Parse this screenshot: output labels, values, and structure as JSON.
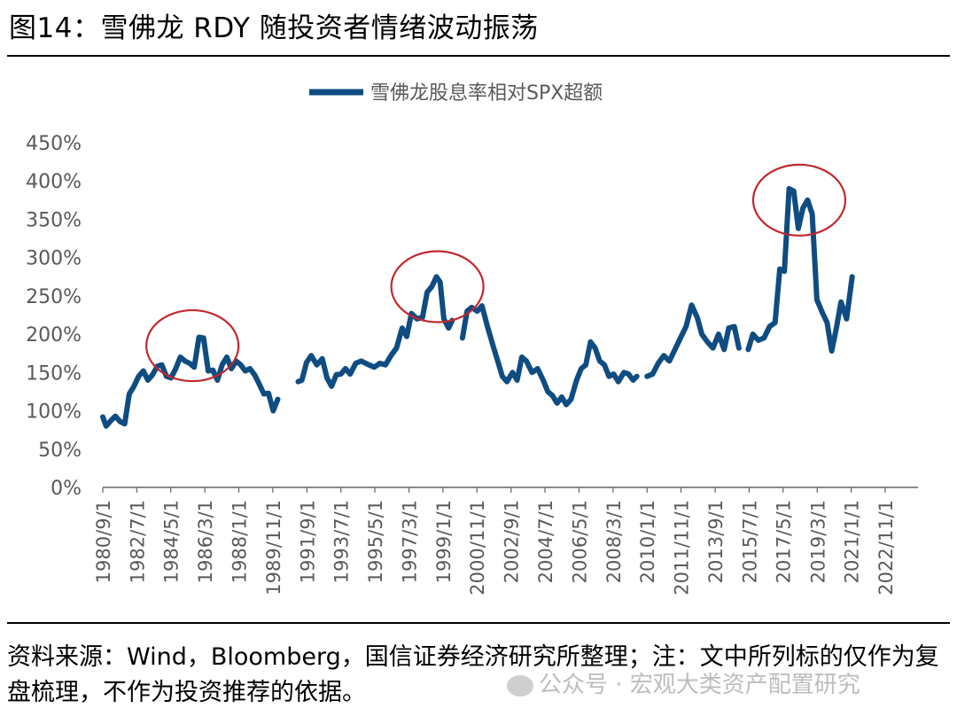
{
  "title": "图14：雪佛龙 RDY 随投资者情绪波动振荡",
  "footnote": "资料来源：Wind，Bloomberg，国信证券经济研究所整理；注：文中所列标的仅作为复盘梳理，不作为投资推荐的依据。",
  "watermark": "公众号 · 宏观大类资产配置研究",
  "colors": {
    "series": "#0f4c81",
    "circle": "#c0282d",
    "axis": "#666666",
    "text": "#595959"
  },
  "chart_data": {
    "type": "line",
    "title": "",
    "xlabel": "",
    "ylabel": "",
    "ylim": [
      0,
      4.5
    ],
    "yticks": [
      0,
      0.5,
      1.0,
      1.5,
      2.0,
      2.5,
      3.0,
      3.5,
      4.0,
      4.5
    ],
    "ytick_labels": [
      "0%",
      "50%",
      "100%",
      "150%",
      "200%",
      "250%",
      "300%",
      "350%",
      "400%",
      "450%"
    ],
    "xlim": [
      1980.67,
      2024.6
    ],
    "xtick_labels": [
      "1980/9/1",
      "1982/7/1",
      "1984/5/1",
      "1986/3/1",
      "1988/1/1",
      "1989/11/1",
      "1991/9/1",
      "1993/7/1",
      "1995/5/1",
      "1997/3/1",
      "1999/1/1",
      "2000/11/1",
      "2002/9/1",
      "2004/7/1",
      "2006/5/1",
      "2008/3/1",
      "2010/1/1",
      "2011/11/1",
      "2013/9/1",
      "2015/7/1",
      "2017/5/1",
      "2019/3/1",
      "2021/1/1",
      "2022/11/1"
    ],
    "xtick_positions": [
      1980.67,
      1982.5,
      1984.33,
      1986.17,
      1988.0,
      1989.83,
      1991.67,
      1993.5,
      1995.33,
      1997.17,
      1999.0,
      2000.83,
      2002.67,
      2004.5,
      2006.33,
      2008.17,
      2010.0,
      2011.83,
      2013.67,
      2015.5,
      2017.33,
      2019.17,
      2021.0,
      2022.83
    ],
    "legend": "top-center",
    "grid": false,
    "series": [
      {
        "name": "雪佛龙股息率相对SPX超额",
        "segments": [
          [
            [
              1980.67,
              0.92
            ],
            [
              1980.85,
              0.8
            ],
            [
              1981.1,
              0.87
            ],
            [
              1981.35,
              0.93
            ],
            [
              1981.6,
              0.86
            ],
            [
              1981.85,
              0.83
            ],
            [
              1982.1,
              1.22
            ],
            [
              1982.35,
              1.32
            ],
            [
              1982.6,
              1.45
            ],
            [
              1982.85,
              1.52
            ],
            [
              1983.1,
              1.4
            ],
            [
              1983.35,
              1.47
            ],
            [
              1983.6,
              1.58
            ],
            [
              1983.85,
              1.6
            ],
            [
              1984.1,
              1.45
            ],
            [
              1984.35,
              1.43
            ],
            [
              1984.6,
              1.55
            ],
            [
              1984.85,
              1.7
            ],
            [
              1985.1,
              1.65
            ],
            [
              1985.35,
              1.62
            ],
            [
              1985.6,
              1.57
            ],
            [
              1985.85,
              1.96
            ],
            [
              1986.1,
              1.95
            ],
            [
              1986.35,
              1.52
            ],
            [
              1986.6,
              1.53
            ],
            [
              1986.85,
              1.4
            ],
            [
              1987.1,
              1.6
            ],
            [
              1987.35,
              1.7
            ],
            [
              1987.6,
              1.55
            ],
            [
              1987.85,
              1.65
            ],
            [
              1988.1,
              1.6
            ],
            [
              1988.35,
              1.52
            ],
            [
              1988.6,
              1.55
            ],
            [
              1988.85,
              1.47
            ],
            [
              1989.1,
              1.35
            ],
            [
              1989.35,
              1.22
            ],
            [
              1989.6,
              1.23
            ],
            [
              1989.85,
              1.0
            ],
            [
              1990.1,
              1.15
            ]
          ],
          [
            [
              1991.2,
              1.38
            ],
            [
              1991.4,
              1.4
            ],
            [
              1991.65,
              1.63
            ],
            [
              1991.9,
              1.72
            ],
            [
              1992.2,
              1.6
            ],
            [
              1992.5,
              1.68
            ],
            [
              1992.75,
              1.43
            ],
            [
              1993.0,
              1.32
            ],
            [
              1993.25,
              1.47
            ],
            [
              1993.5,
              1.48
            ],
            [
              1993.75,
              1.55
            ],
            [
              1994.0,
              1.48
            ],
            [
              1994.3,
              1.62
            ],
            [
              1994.6,
              1.65
            ],
            [
              1995.0,
              1.6
            ],
            [
              1995.3,
              1.57
            ],
            [
              1995.6,
              1.62
            ],
            [
              1995.9,
              1.6
            ],
            [
              1996.2,
              1.72
            ],
            [
              1996.5,
              1.82
            ],
            [
              1996.8,
              2.08
            ],
            [
              1997.05,
              1.97
            ],
            [
              1997.3,
              2.27
            ],
            [
              1997.6,
              2.2
            ],
            [
              1997.9,
              2.22
            ],
            [
              1998.15,
              2.55
            ],
            [
              1998.4,
              2.62
            ],
            [
              1998.65,
              2.75
            ],
            [
              1998.85,
              2.68
            ],
            [
              1999.05,
              2.2
            ],
            [
              1999.3,
              2.08
            ],
            [
              1999.5,
              2.18
            ]
          ],
          [
            [
              2000.05,
              1.95
            ],
            [
              2000.3,
              2.3
            ],
            [
              2000.55,
              2.35
            ],
            [
              2000.85,
              2.3
            ],
            [
              2001.1,
              2.37
            ],
            [
              2001.4,
              2.1
            ],
            [
              2001.7,
              1.85
            ],
            [
              2001.95,
              1.65
            ],
            [
              2002.2,
              1.45
            ],
            [
              2002.45,
              1.38
            ],
            [
              2002.75,
              1.5
            ],
            [
              2003.0,
              1.4
            ],
            [
              2003.25,
              1.7
            ],
            [
              2003.5,
              1.65
            ],
            [
              2003.8,
              1.5
            ],
            [
              2004.1,
              1.55
            ],
            [
              2004.4,
              1.4
            ],
            [
              2004.65,
              1.25
            ],
            [
              2004.9,
              1.2
            ],
            [
              2005.15,
              1.1
            ],
            [
              2005.4,
              1.18
            ],
            [
              2005.65,
              1.08
            ],
            [
              2005.9,
              1.15
            ],
            [
              2006.2,
              1.4
            ],
            [
              2006.45,
              1.55
            ],
            [
              2006.7,
              1.6
            ],
            [
              2006.95,
              1.9
            ],
            [
              2007.2,
              1.82
            ],
            [
              2007.45,
              1.65
            ],
            [
              2007.7,
              1.6
            ],
            [
              2007.95,
              1.45
            ],
            [
              2008.2,
              1.48
            ],
            [
              2008.45,
              1.38
            ],
            [
              2008.75,
              1.5
            ],
            [
              2009.0,
              1.48
            ],
            [
              2009.25,
              1.4
            ],
            [
              2009.45,
              1.45
            ]
          ],
          [
            [
              2010.0,
              1.45
            ],
            [
              2010.3,
              1.48
            ],
            [
              2010.6,
              1.62
            ],
            [
              2010.9,
              1.72
            ],
            [
              2011.2,
              1.65
            ],
            [
              2011.5,
              1.8
            ],
            [
              2011.8,
              1.95
            ],
            [
              2012.1,
              2.1
            ],
            [
              2012.4,
              2.38
            ],
            [
              2012.7,
              2.22
            ],
            [
              2012.95,
              2.0
            ],
            [
              2013.25,
              1.9
            ],
            [
              2013.55,
              1.82
            ],
            [
              2013.85,
              2.0
            ],
            [
              2014.15,
              1.8
            ],
            [
              2014.4,
              2.08
            ],
            [
              2014.7,
              2.1
            ],
            [
              2014.95,
              1.82
            ]
          ],
          [
            [
              2015.45,
              1.8
            ],
            [
              2015.7,
              2.0
            ],
            [
              2016.0,
              1.92
            ],
            [
              2016.3,
              1.95
            ],
            [
              2016.6,
              2.1
            ],
            [
              2016.9,
              2.15
            ],
            [
              2017.15,
              2.85
            ],
            [
              2017.4,
              2.82
            ],
            [
              2017.65,
              3.9
            ],
            [
              2017.9,
              3.87
            ],
            [
              2018.15,
              3.38
            ],
            [
              2018.4,
              3.65
            ],
            [
              2018.65,
              3.75
            ],
            [
              2018.9,
              3.57
            ],
            [
              2019.15,
              2.45
            ],
            [
              2019.45,
              2.28
            ],
            [
              2019.7,
              2.15
            ],
            [
              2019.95,
              1.78
            ],
            [
              2020.2,
              2.08
            ],
            [
              2020.45,
              2.42
            ],
            [
              2020.75,
              2.2
            ],
            [
              2021.05,
              2.75
            ]
          ]
        ]
      }
    ]
  },
  "annotations": [
    {
      "name": "peak-circle-1986",
      "cx": 1985.5,
      "cy": 1.85
    },
    {
      "name": "peak-circle-2000",
      "cx": 1998.7,
      "cy": 2.62
    },
    {
      "name": "peak-circle-2022",
      "cx": 2018.2,
      "cy": 3.75
    }
  ]
}
